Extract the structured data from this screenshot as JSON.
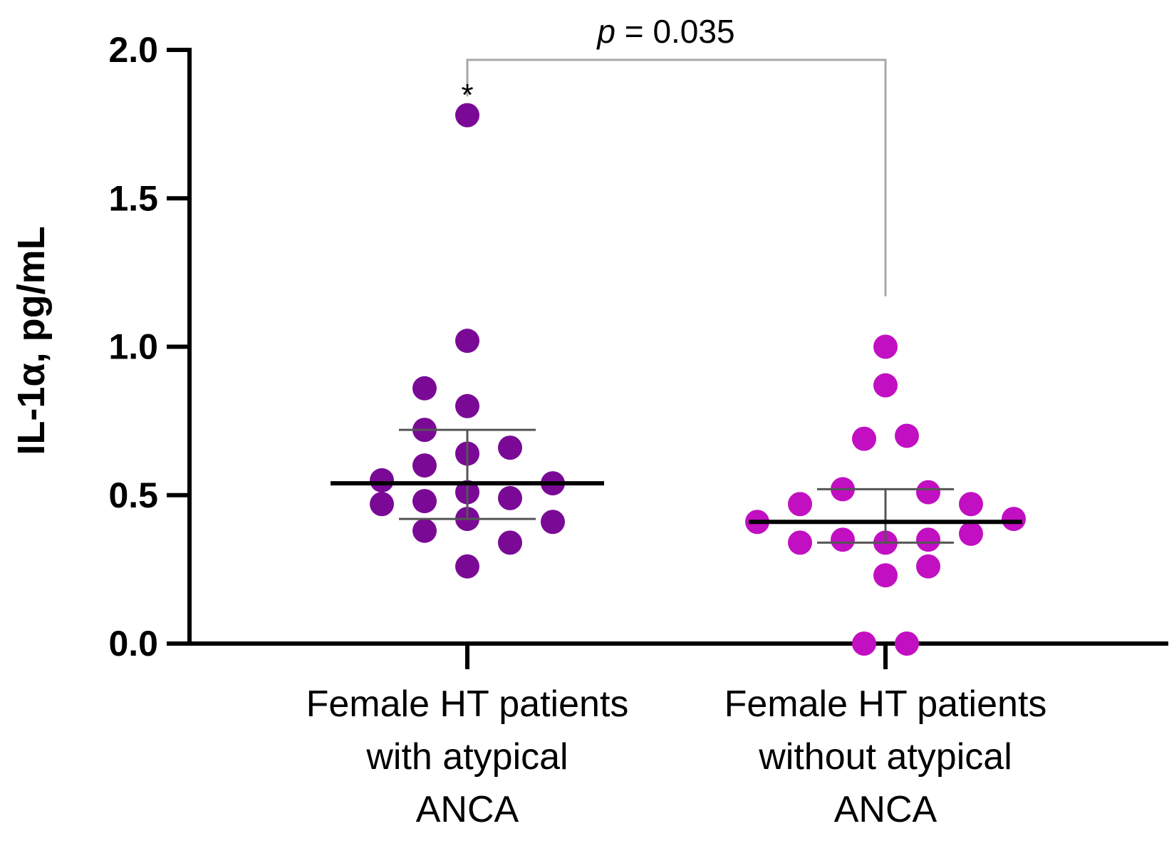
{
  "chart_data": {
    "type": "scatter",
    "ylabel": "IL-1α, pg/mL",
    "ylim": [
      0,
      2.0
    ],
    "yticks": [
      "0.0",
      "0.5",
      "1.0",
      "1.5",
      "2.0"
    ],
    "grid": false,
    "categories": [
      [
        "Female HT patients",
        "with atypical",
        "ANCA"
      ],
      [
        "Female HT patients",
        "without atypical",
        "ANCA"
      ]
    ],
    "series": [
      {
        "color": "#7a0a96",
        "values": [
          1.78,
          1.02,
          0.86,
          0.8,
          0.72,
          0.66,
          0.64,
          0.6,
          0.55,
          0.54,
          0.51,
          0.49,
          0.48,
          0.47,
          0.42,
          0.41,
          0.38,
          0.34,
          0.26
        ],
        "offsets": [
          0,
          0,
          -1,
          0,
          -1,
          1,
          0,
          -1,
          -2,
          2,
          0,
          1,
          -1,
          -2,
          0,
          2,
          -1,
          1,
          0
        ],
        "median": 0.54,
        "iqr": [
          0.42,
          0.72
        ]
      },
      {
        "color": "#c20fc2",
        "values": [
          1.0,
          0.87,
          0.7,
          0.69,
          0.52,
          0.51,
          0.47,
          0.47,
          0.42,
          0.41,
          0.37,
          0.35,
          0.35,
          0.34,
          0.34,
          0.26,
          0.23,
          0.0,
          0.0
        ],
        "offsets": [
          0,
          0,
          0.5,
          -0.5,
          -1,
          1,
          -2,
          2,
          3,
          -3,
          2,
          -1,
          1,
          -2,
          0,
          1,
          0,
          -0.5,
          0.5
        ],
        "median": 0.41,
        "iqr": [
          0.34,
          0.52
        ]
      }
    ],
    "annotations": {
      "p_label": "p",
      "p_value": " = 0.035",
      "outlier_marker": "*"
    }
  }
}
